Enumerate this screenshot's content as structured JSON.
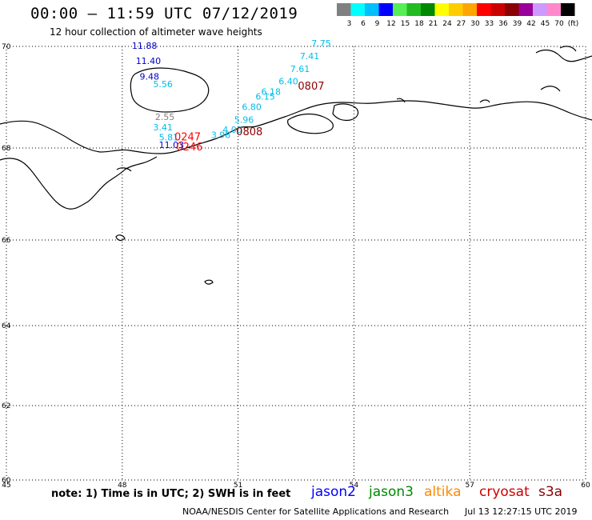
{
  "title": "00:00 – 11:59 UTC 07/12/2019",
  "subtitle": "12 hour collection of altimeter wave heights",
  "legend": {
    "colors": [
      "#808080",
      "#00ffff",
      "#00bfff",
      "#0000ff",
      "#55ee55",
      "#22bb22",
      "#008800",
      "#ffff00",
      "#ffcc00",
      "#ffa500",
      "#ff0000",
      "#cc0000",
      "#8b0000",
      "#990099",
      "#cc99ff",
      "#ff88cc",
      "#000000"
    ],
    "labels": [
      "3",
      "6",
      "9",
      "12",
      "15",
      "18",
      "21",
      "24",
      "27",
      "30",
      "33",
      "36",
      "39",
      "42",
      "45",
      "70",
      "(ft)"
    ]
  },
  "axes": {
    "lat_labels": [
      "70",
      "68",
      "66",
      "64",
      "62",
      "60"
    ],
    "lon_labels": [
      "45",
      "48",
      "51",
      "54",
      "57",
      "60"
    ]
  },
  "chart_data": {
    "type": "scatter",
    "xlabel": "",
    "ylabel": "",
    "xlim": [
      45,
      60
    ],
    "ylim": [
      60,
      70
    ],
    "grid": true,
    "series": [
      {
        "color": "#0000cc",
        "points": [
          {
            "lon": 48.25,
            "lat": 69.95,
            "value": "11.88"
          },
          {
            "lon": 48.35,
            "lat": 69.65,
            "value": "11.40"
          },
          {
            "lon": 48.45,
            "lat": 69.35,
            "value": "9.48"
          },
          {
            "lon": 48.95,
            "lat": 68.0,
            "value": "11.03"
          }
        ]
      },
      {
        "color": "#00bbee",
        "points": [
          {
            "lon": 52.9,
            "lat": 70.0,
            "value": "7.75"
          },
          {
            "lon": 52.6,
            "lat": 69.75,
            "value": "7.41"
          },
          {
            "lon": 52.35,
            "lat": 69.5,
            "value": "7.61"
          },
          {
            "lon": 52.05,
            "lat": 69.25,
            "value": "6.40"
          },
          {
            "lon": 51.6,
            "lat": 69.05,
            "value": "6.18"
          },
          {
            "lon": 51.45,
            "lat": 68.95,
            "value": "6.15"
          },
          {
            "lon": 51.1,
            "lat": 68.75,
            "value": "6.80"
          },
          {
            "lon": 50.9,
            "lat": 68.5,
            "value": "5.96"
          },
          {
            "lon": 50.6,
            "lat": 68.3,
            "value": "4.00"
          },
          {
            "lon": 50.3,
            "lat": 68.2,
            "value": "3.98"
          },
          {
            "lon": 48.8,
            "lat": 69.2,
            "value": "5.56"
          },
          {
            "lon": 48.8,
            "lat": 68.35,
            "value": "3.41"
          },
          {
            "lon": 48.95,
            "lat": 68.15,
            "value": "5.81"
          }
        ]
      },
      {
        "color": "#808080",
        "points": [
          {
            "lon": 48.85,
            "lat": 68.55,
            "value": "2.55"
          }
        ]
      }
    ],
    "time_labels": [
      {
        "lon": 52.55,
        "lat": 69.15,
        "text": "0807",
        "color": "#8b0000"
      },
      {
        "lon": 50.95,
        "lat": 68.25,
        "text": "0808",
        "color": "#8b0000"
      },
      {
        "lon": 49.35,
        "lat": 68.15,
        "text": "0247",
        "color": "#ff0000"
      },
      {
        "lon": 49.4,
        "lat": 67.95,
        "text": "0246",
        "color": "#ff0000"
      }
    ]
  },
  "note": "note: 1) Time is in UTC; 2) SWH is in feet",
  "satellites": [
    {
      "name": "jason2",
      "color": "#0000ff"
    },
    {
      "name": "jason3",
      "color": "#008800"
    },
    {
      "name": "altika",
      "color": "#ff8800"
    },
    {
      "name": "cryosat",
      "color": "#cc0000"
    },
    {
      "name": "s3a",
      "color": "#880000"
    }
  ],
  "credit": "NOAA/NESDIS Center for Satellite Applications and Research",
  "credit_time": "Jul 13 12:27:15 UTC 2019"
}
